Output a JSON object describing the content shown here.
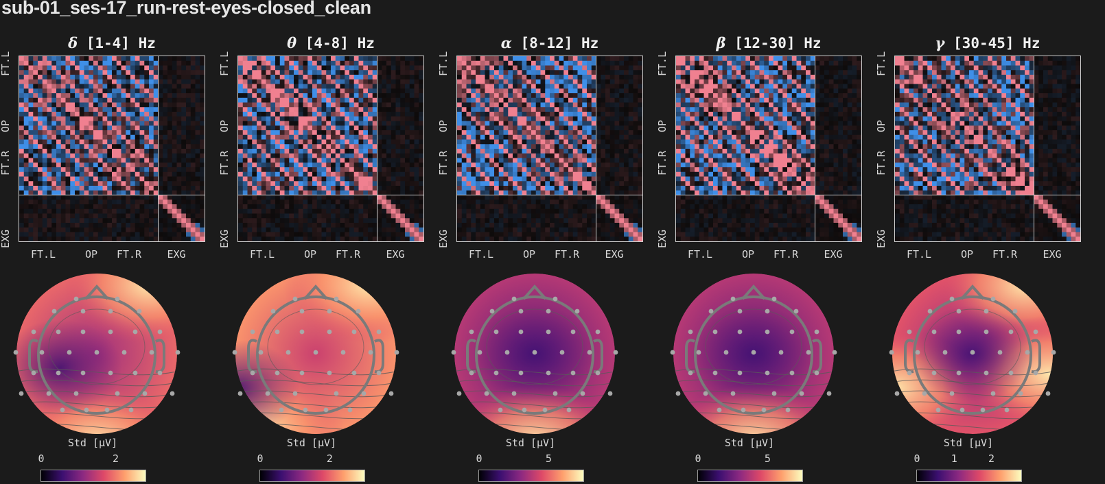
{
  "title": "sub-01_ses-17_run-rest-eyes-closed_clean",
  "colors": {
    "background": "#1b1b1b",
    "matrix_positive": "#f08090",
    "matrix_negative": "#3f8fe8",
    "magma": [
      "#000004",
      "#3b0f70",
      "#8c2981",
      "#de4968",
      "#fe9f6d",
      "#fcfdbf"
    ]
  },
  "chart_data": [
    {
      "type": "heatmap",
      "band_symbol": "δ",
      "band_range": "[1-4] Hz",
      "row_labels": [
        "FT.L",
        "OP",
        "FT.R",
        "EXG"
      ],
      "col_labels": [
        "FT.L",
        "OP",
        "FT.R",
        "EXG"
      ],
      "colorbar_label": "Std [μV]",
      "colorbar_ticks": [
        "0",
        "2"
      ],
      "colorbar_range": [
        0,
        2.8
      ],
      "topomap": {
        "type": "topomap",
        "hot_spots": [
          "frontal-right",
          "occipital"
        ],
        "cold_spots": [
          "central-left"
        ]
      }
    },
    {
      "type": "heatmap",
      "band_symbol": "θ",
      "band_range": "[4-8] Hz",
      "row_labels": [
        "FT.L",
        "OP",
        "FT.R",
        "EXG"
      ],
      "col_labels": [
        "FT.L",
        "OP",
        "FT.R",
        "EXG"
      ],
      "colorbar_label": "Std [μV]",
      "colorbar_ticks": [
        "0",
        "2"
      ],
      "colorbar_range": [
        0,
        3.0
      ],
      "topomap": {
        "type": "topomap",
        "hot_spots": [
          "frontal-right",
          "occipital-left"
        ],
        "cold_spots": [
          "temporal-left"
        ]
      }
    },
    {
      "type": "heatmap",
      "band_symbol": "α",
      "band_range": "[8-12] Hz",
      "row_labels": [
        "FT.L",
        "OP",
        "FT.R",
        "EXG"
      ],
      "col_labels": [
        "FT.L",
        "OP",
        "FT.R",
        "EXG"
      ],
      "colorbar_label": "Std [μV]",
      "colorbar_ticks": [
        "0",
        "5"
      ],
      "colorbar_range": [
        0,
        7.5
      ],
      "topomap": {
        "type": "topomap",
        "hot_spots": [
          "occipital"
        ],
        "cold_spots": [
          "central"
        ]
      }
    },
    {
      "type": "heatmap",
      "band_symbol": "β",
      "band_range": "[12-30] Hz",
      "row_labels": [
        "FT.L",
        "OP",
        "FT.R",
        "EXG"
      ],
      "col_labels": [
        "FT.L",
        "OP",
        "FT.R",
        "EXG"
      ],
      "colorbar_label": "Std [μV]",
      "colorbar_ticks": [
        "0",
        "5"
      ],
      "colorbar_range": [
        0,
        7.5
      ],
      "topomap": {
        "type": "topomap",
        "hot_spots": [
          "occipital"
        ],
        "cold_spots": [
          "central"
        ]
      }
    },
    {
      "type": "heatmap",
      "band_symbol": "γ",
      "band_range": "[30-45] Hz",
      "row_labels": [
        "FT.L",
        "OP",
        "FT.R",
        "EXG"
      ],
      "col_labels": [
        "FT.L",
        "OP",
        "FT.R",
        "EXG"
      ],
      "colorbar_label": "Std [μV]",
      "colorbar_ticks": [
        "0",
        "1",
        "2"
      ],
      "colorbar_range": [
        0,
        2.8
      ],
      "topomap": {
        "type": "topomap",
        "hot_spots": [
          "frontal-right",
          "temporal-left",
          "temporal-right"
        ],
        "cold_spots": [
          "central"
        ]
      }
    }
  ]
}
